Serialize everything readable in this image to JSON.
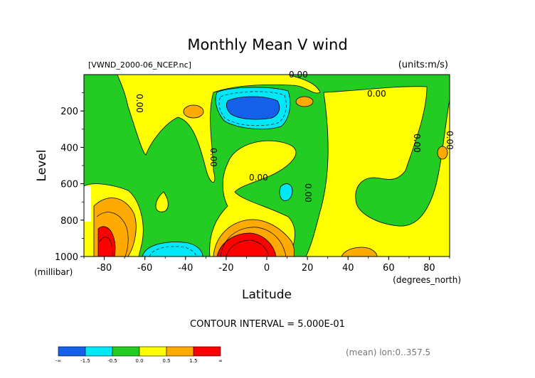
{
  "chart_data": {
    "type": "heatmap",
    "title": "Monthly Mean V wind",
    "file_label": "[VWND_2000-06_NCEP.nc]",
    "units_label": "(units:m/s)",
    "xlabel": "Latitude",
    "x_units": "(degrees_north)",
    "ylabel": "Level",
    "y_units": "(millibar)",
    "x_ticks": [
      "-80",
      "-60",
      "-40",
      "-20",
      "0",
      "20",
      "40",
      "60",
      "80"
    ],
    "y_ticks": [
      "200",
      "400",
      "600",
      "800",
      "1000"
    ],
    "xlim": [
      -90,
      90
    ],
    "ylim": [
      1000,
      0
    ],
    "contour_interval_text": "CONTOUR INTERVAL = 5.000E-01",
    "contour_labels": [
      "0.00",
      "0.00",
      "0.00",
      "0.00",
      "0.00",
      "0.00",
      "0.00",
      "0.00"
    ],
    "footer_text": "(mean) lon:0..357.5",
    "colorbar": {
      "labels": [
        "-∞",
        "-1.5",
        "-0.5",
        "0.0",
        "0.5",
        "1.5",
        "∞"
      ],
      "colors": [
        "#1560e8",
        "#00e8f8",
        "#22cc22",
        "#ffff00",
        "#ffaa00",
        "#ff0000"
      ]
    }
  }
}
